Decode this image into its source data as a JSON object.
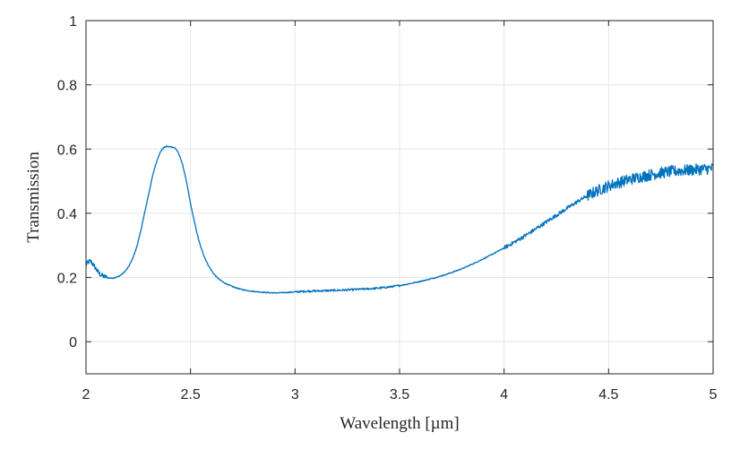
{
  "chart_data": {
    "type": "line",
    "title": "",
    "xlabel": "Wavelength [µm]",
    "ylabel": "Transmission",
    "xlim": [
      2,
      5
    ],
    "ylim": [
      -0.1,
      1
    ],
    "xticks": [
      2,
      2.5,
      3,
      3.5,
      4,
      4.5,
      5
    ],
    "xtick_labels": [
      "2",
      "2.5",
      "3",
      "3.5",
      "4",
      "4.5",
      "5"
    ],
    "yticks": [
      0,
      0.2,
      0.4,
      0.6,
      0.8,
      1
    ],
    "ytick_labels": [
      "0",
      "0.2",
      "0.4",
      "0.6",
      "0.8",
      "1"
    ],
    "grid": true,
    "legend": false,
    "series": [
      {
        "color": "#0072bd",
        "x": [
          2.0,
          2.02,
          2.04,
          2.06,
          2.08,
          2.1,
          2.12,
          2.14,
          2.16,
          2.18,
          2.2,
          2.22,
          2.24,
          2.26,
          2.28,
          2.3,
          2.32,
          2.34,
          2.36,
          2.38,
          2.4,
          2.42,
          2.43,
          2.44,
          2.46,
          2.48,
          2.5,
          2.52,
          2.54,
          2.56,
          2.58,
          2.6,
          2.62,
          2.65,
          2.7,
          2.75,
          2.8,
          2.85,
          2.9,
          2.95,
          3.0,
          3.05,
          3.1,
          3.2,
          3.3,
          3.4,
          3.5,
          3.6,
          3.7,
          3.8,
          3.9,
          4.0,
          4.1,
          4.2,
          4.3,
          4.4,
          4.5,
          4.6,
          4.7,
          4.8,
          4.9,
          5.0
        ],
        "y": [
          0.24,
          0.25,
          0.235,
          0.215,
          0.205,
          0.2,
          0.198,
          0.2,
          0.205,
          0.215,
          0.23,
          0.255,
          0.29,
          0.34,
          0.4,
          0.46,
          0.52,
          0.565,
          0.595,
          0.607,
          0.607,
          0.605,
          0.6,
          0.59,
          0.555,
          0.5,
          0.43,
          0.37,
          0.315,
          0.275,
          0.245,
          0.222,
          0.205,
          0.188,
          0.172,
          0.162,
          0.157,
          0.154,
          0.152,
          0.153,
          0.155,
          0.157,
          0.158,
          0.16,
          0.163,
          0.167,
          0.175,
          0.188,
          0.205,
          0.228,
          0.258,
          0.292,
          0.33,
          0.372,
          0.415,
          0.455,
          0.485,
          0.505,
          0.52,
          0.53,
          0.535,
          0.54
        ],
        "noise": [
          {
            "x_from": 2.0,
            "x_to": 2.1,
            "amplitude": 0.008
          },
          {
            "x_from": 3.0,
            "x_to": 3.5,
            "amplitude": 0.003
          },
          {
            "x_from": 4.0,
            "x_to": 4.4,
            "amplitude": 0.006
          },
          {
            "x_from": 4.4,
            "x_to": 5.0,
            "amplitude": 0.018
          }
        ]
      }
    ]
  }
}
